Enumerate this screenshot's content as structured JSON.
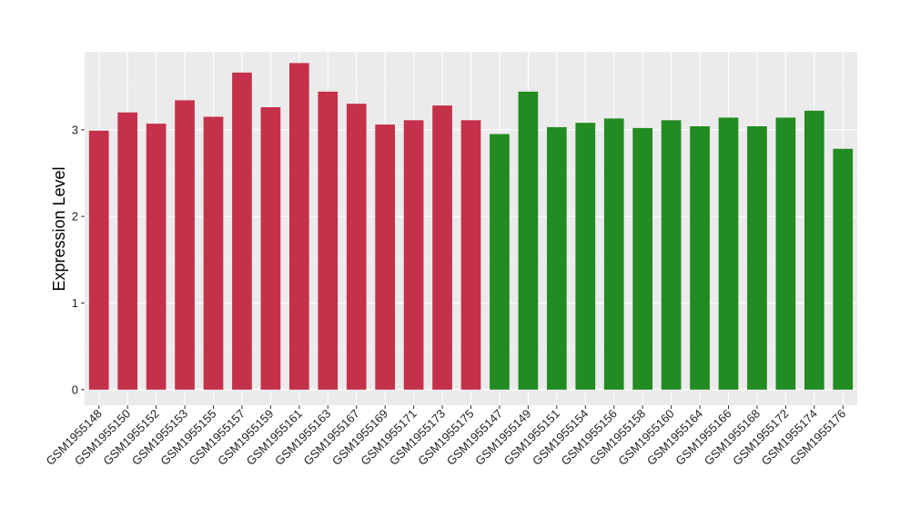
{
  "chart_data": {
    "type": "bar",
    "title": "",
    "xlabel": "",
    "ylabel": "Expression Level",
    "ylim": [
      -0.18,
      3.9
    ],
    "yticks": [
      0,
      1,
      2,
      3
    ],
    "grid": true,
    "legend": "none",
    "colors": {
      "panel_background": "#EBEBEB",
      "grid_major": "#FFFFFF",
      "group_a": "#C5304A",
      "group_b": "#228B22"
    },
    "categories": [
      "GSM1955148",
      "GSM1955150",
      "GSM1955152",
      "GSM1955153",
      "GSM1955155",
      "GSM1955157",
      "GSM1955159",
      "GSM1955161",
      "GSM1955163",
      "GSM1955167",
      "GSM1955169",
      "GSM1955171",
      "GSM1955173",
      "GSM1955175",
      "GSM1955147",
      "GSM1955149",
      "GSM1955151",
      "GSM1955154",
      "GSM1955156",
      "GSM1955158",
      "GSM1955160",
      "GSM1955164",
      "GSM1955166",
      "GSM1955168",
      "GSM1955172",
      "GSM1955174",
      "GSM1955176"
    ],
    "values": [
      2.99,
      3.2,
      3.07,
      3.34,
      3.15,
      3.66,
      3.26,
      3.77,
      3.44,
      3.3,
      3.06,
      3.11,
      3.28,
      3.11,
      2.95,
      3.44,
      3.03,
      3.08,
      3.13,
      3.02,
      3.11,
      3.04,
      3.14,
      3.04,
      3.14,
      3.22,
      2.78
    ],
    "groups": [
      "a",
      "a",
      "a",
      "a",
      "a",
      "a",
      "a",
      "a",
      "a",
      "a",
      "a",
      "a",
      "a",
      "a",
      "b",
      "b",
      "b",
      "b",
      "b",
      "b",
      "b",
      "b",
      "b",
      "b",
      "b",
      "b",
      "b"
    ]
  }
}
